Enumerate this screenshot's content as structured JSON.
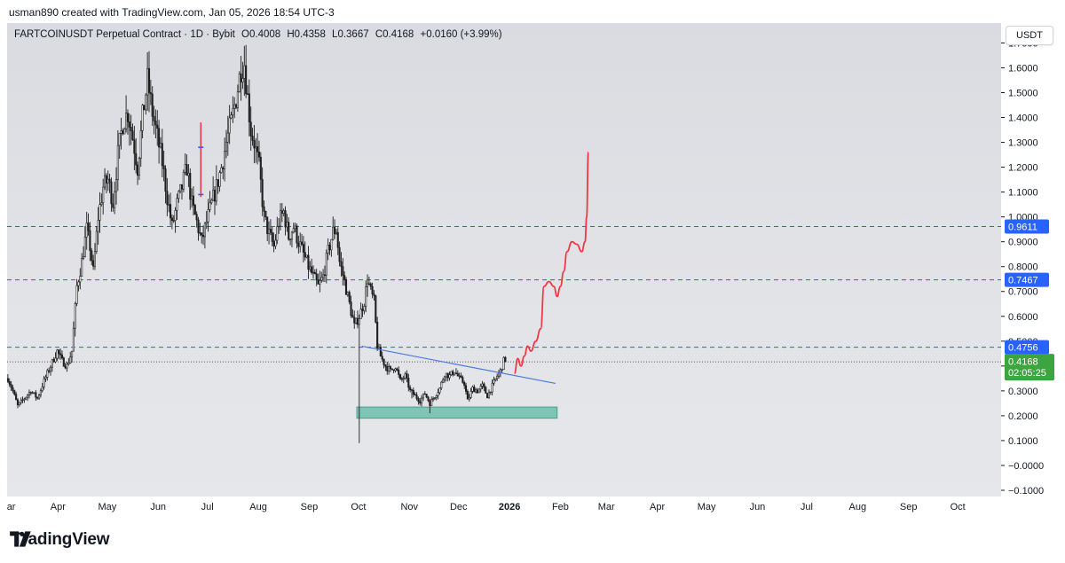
{
  "caption": "usman890 created with TradingView.com, Jan 05, 2026 18:54 UTC-3",
  "legend": {
    "symbol": "FARTCOINUSDT Perpetual Contract · 1D · Bybit",
    "open": "O0.4008",
    "high": "H0.4358",
    "low": "L0.3667",
    "close": "C0.4168",
    "change": "+0.0160 (+3.99%)"
  },
  "currency_button": "USDT",
  "brand": "TradingView",
  "colors": {
    "candle": "#1e1e1e",
    "trendline": "#4a78e0",
    "level_line": "#2f5fe0",
    "projection": "#f23645",
    "zone": "#5fb8a4",
    "current_price_badge": "#3da53f",
    "level_badge": "#2962ff"
  },
  "chart_data": {
    "type": "candlestick",
    "title": "FARTCOINUSDT Perpetual Contract · 1D · Bybit",
    "y_ticks": [
      "1.7000",
      "1.6000",
      "1.5000",
      "1.4000",
      "1.3000",
      "1.2000",
      "1.1000",
      "1.0000",
      "0.9000",
      "0.8000",
      "0.7000",
      "0.6000",
      "0.5000",
      "0.4000",
      "0.3000",
      "0.2000",
      "0.1000",
      "−0.0000",
      "−0.1000"
    ],
    "y_tick_values": [
      1.7,
      1.6,
      1.5,
      1.4,
      1.3,
      1.2,
      1.1,
      1.0,
      0.9,
      0.8,
      0.7,
      0.6,
      0.5,
      0.4,
      0.3,
      0.2,
      0.1,
      0.0,
      -0.1
    ],
    "ylim": [
      -0.125,
      1.78
    ],
    "x_ticks": [
      "Mar",
      "Apr",
      "May",
      "Jun",
      "Jul",
      "Aug",
      "Sep",
      "Oct",
      "Nov",
      "Dec",
      "2026",
      "Feb",
      "Mar",
      "Apr",
      "May",
      "Jun",
      "Jul",
      "Aug",
      "Sep",
      "Oct"
    ],
    "x_tick_days": [
      0,
      31,
      61,
      92,
      122,
      153,
      184,
      214,
      245,
      275,
      306,
      337,
      365,
      396,
      426,
      457,
      487,
      518,
      549,
      579
    ],
    "x_start": "2025-03-01",
    "price_path": [
      [
        0,
        0.35
      ],
      [
        3,
        0.3
      ],
      [
        6,
        0.24
      ],
      [
        10,
        0.27
      ],
      [
        14,
        0.3
      ],
      [
        18,
        0.27
      ],
      [
        22,
        0.34
      ],
      [
        26,
        0.4
      ],
      [
        30,
        0.46
      ],
      [
        33,
        0.42
      ],
      [
        36,
        0.4
      ],
      [
        39,
        0.46
      ],
      [
        42,
        0.72
      ],
      [
        45,
        0.82
      ],
      [
        48,
        0.95
      ],
      [
        50,
        0.88
      ],
      [
        52,
        0.78
      ],
      [
        55,
        1.0
      ],
      [
        58,
        1.12
      ],
      [
        61,
        1.15
      ],
      [
        64,
        1.06
      ],
      [
        67,
        1.25
      ],
      [
        70,
        1.38
      ],
      [
        73,
        1.42
      ],
      [
        76,
        1.32
      ],
      [
        79,
        1.2
      ],
      [
        82,
        1.4
      ],
      [
        85,
        1.55
      ],
      [
        88,
        1.42
      ],
      [
        91,
        1.32
      ],
      [
        94,
        1.22
      ],
      [
        97,
        1.08
      ],
      [
        100,
        0.96
      ],
      [
        103,
        1.05
      ],
      [
        106,
        1.12
      ],
      [
        109,
        1.2
      ],
      [
        112,
        1.05
      ],
      [
        115,
        0.98
      ],
      [
        118,
        0.9
      ],
      [
        121,
        0.98
      ],
      [
        124,
        1.05
      ],
      [
        127,
        1.12
      ],
      [
        130,
        1.2
      ],
      [
        133,
        1.3
      ],
      [
        136,
        1.38
      ],
      [
        139,
        1.48
      ],
      [
        142,
        1.6
      ],
      [
        144,
        1.62
      ],
      [
        146,
        1.48
      ],
      [
        148,
        1.35
      ],
      [
        150,
        1.3
      ],
      [
        153,
        1.2
      ],
      [
        156,
        1.0
      ],
      [
        159,
        0.93
      ],
      [
        162,
        0.88
      ],
      [
        165,
        0.98
      ],
      [
        168,
        1.02
      ],
      [
        171,
        0.92
      ],
      [
        174,
        0.96
      ],
      [
        177,
        0.9
      ],
      [
        180,
        0.85
      ],
      [
        183,
        0.8
      ],
      [
        186,
        0.76
      ],
      [
        189,
        0.72
      ],
      [
        192,
        0.76
      ],
      [
        195,
        0.86
      ],
      [
        198,
        0.94
      ],
      [
        200,
        0.95
      ],
      [
        202,
        0.82
      ],
      [
        205,
        0.74
      ],
      [
        208,
        0.65
      ],
      [
        211,
        0.56
      ],
      [
        214,
        0.6
      ],
      [
        217,
        0.66
      ],
      [
        219,
        0.75
      ],
      [
        221,
        0.7
      ],
      [
        223,
        0.66
      ],
      [
        225,
        0.48
      ],
      [
        227,
        0.44
      ],
      [
        230,
        0.4
      ],
      [
        233,
        0.38
      ],
      [
        236,
        0.4
      ],
      [
        239,
        0.34
      ],
      [
        242,
        0.36
      ],
      [
        245,
        0.3
      ],
      [
        248,
        0.28
      ],
      [
        251,
        0.26
      ],
      [
        254,
        0.29
      ],
      [
        257,
        0.25
      ],
      [
        260,
        0.28
      ],
      [
        263,
        0.31
      ],
      [
        266,
        0.37
      ],
      [
        269,
        0.36
      ],
      [
        272,
        0.38
      ],
      [
        275,
        0.35
      ],
      [
        278,
        0.33
      ],
      [
        280,
        0.26
      ],
      [
        283,
        0.31
      ],
      [
        286,
        0.3
      ],
      [
        289,
        0.32
      ],
      [
        292,
        0.28
      ],
      [
        295,
        0.32
      ],
      [
        298,
        0.36
      ],
      [
        300,
        0.38
      ],
      [
        302,
        0.42
      ],
      [
        303,
        0.4168
      ]
    ],
    "price_lows": [
      [
        214,
        0.09
      ],
      [
        246,
        0.27
      ],
      [
        257,
        0.21
      ]
    ],
    "horizontal_levels": [
      0.9611,
      0.7467,
      0.4756
    ],
    "level_labels": [
      "0.9611",
      "0.7467",
      "0.4756"
    ],
    "current_price": 0.4168,
    "current_price_label": "0.4168",
    "countdown": "02:05:25",
    "trendline": [
      [
        216,
        0.48
      ],
      [
        334,
        0.33
      ]
    ],
    "support_zone": {
      "x0": 213,
      "x1": 335,
      "y0": 0.19,
      "y1": 0.235
    },
    "projection_path": [
      [
        309,
        0.37
      ],
      [
        311,
        0.43
      ],
      [
        313,
        0.4
      ],
      [
        315,
        0.44
      ],
      [
        317,
        0.48
      ],
      [
        319,
        0.46
      ],
      [
        322,
        0.5
      ],
      [
        325,
        0.55
      ],
      [
        327,
        0.72
      ],
      [
        330,
        0.74
      ],
      [
        333,
        0.72
      ],
      [
        335,
        0.68
      ],
      [
        337,
        0.72
      ],
      [
        339,
        0.78
      ],
      [
        341,
        0.86
      ],
      [
        344,
        0.9
      ],
      [
        347,
        0.89
      ],
      [
        350,
        0.86
      ],
      [
        352,
        0.9
      ],
      [
        353,
        1.0
      ],
      [
        354,
        1.26
      ]
    ],
    "marker": {
      "day": 118,
      "low": 1.08,
      "high": 1.38
    }
  }
}
